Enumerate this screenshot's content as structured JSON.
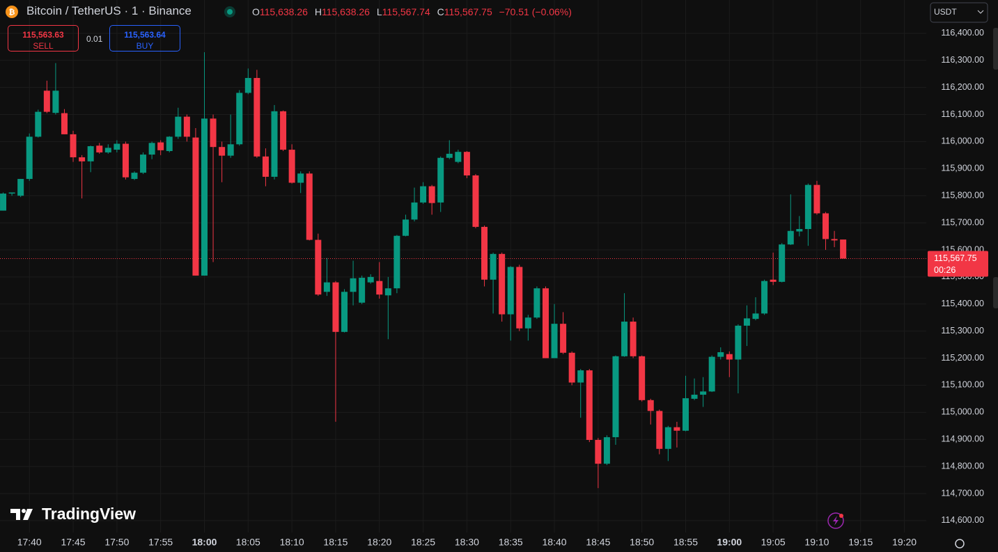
{
  "header": {
    "symbol": "Bitcoin / TetherUS · 1 · Binance",
    "o_label": "O",
    "open": "115,638.26",
    "h_label": "H",
    "high": "115,638.26",
    "l_label": "L",
    "low": "115,567.74",
    "c_label": "C",
    "close": "115,567.75",
    "change": "−70.51 (−0.06%)"
  },
  "trade": {
    "sell_price": "115,563.63",
    "sell_label": "SELL",
    "quantity": "0.01",
    "buy_price": "115,563.64",
    "buy_label": "BUY"
  },
  "currency": "USDT",
  "watermark": "TradingView",
  "chart_data": {
    "type": "candlestick",
    "categories": [
      null,
      null,
      null,
      "17:40",
      null,
      null,
      null,
      null,
      "17:45",
      null,
      null,
      null,
      null,
      "17:50",
      null,
      null,
      null,
      null,
      "17:55",
      null,
      null,
      null,
      null,
      "18:00",
      null,
      null,
      null,
      null,
      "18:05",
      null,
      null,
      null,
      null,
      "18:10",
      null,
      null,
      null,
      null,
      "18:15",
      null,
      null,
      null,
      null,
      "18:20",
      null,
      null,
      null,
      null,
      "18:25",
      null,
      null,
      null,
      null,
      "18:30",
      null,
      null,
      null,
      null,
      "18:35",
      null,
      null,
      null,
      null,
      "18:40",
      null,
      null,
      null,
      null,
      "18:45",
      null,
      null,
      null,
      null,
      "18:50",
      null,
      null,
      null,
      null,
      "18:55",
      null,
      null,
      null,
      null,
      "19:00",
      null,
      null,
      null,
      null,
      "19:05",
      null,
      null,
      null,
      null,
      "19:10",
      null,
      null,
      null,
      null,
      "19:15",
      null,
      null,
      null,
      null,
      "19:20",
      null,
      null
    ],
    "open": [
      115745,
      115808,
      115800,
      115862,
      116018,
      116188,
      116106,
      116105,
      116027,
      115942,
      115927,
      115985,
      115960,
      115970,
      115992,
      115862,
      115885,
      115952,
      115997,
      115965,
      116018,
      116092,
      116015,
      115505,
      116085,
      115980,
      115948,
      115990,
      116180,
      116235,
      115945,
      115870,
      116112,
      115970,
      115848,
      115882,
      115637,
      115445,
      115480,
      115297,
      115445,
      115405,
      115480,
      115485,
      115432,
      115458,
      115652,
      115712,
      115775,
      115835,
      115775,
      115940,
      115925,
      115962,
      115875,
      115685,
      115490,
      115585,
      115362,
      115537,
      115310,
      115350,
      115458,
      115200,
      115327,
      115220,
      115110,
      115155,
      114898,
      114810,
      114908,
      115207,
      115335,
      115207,
      115045,
      115005,
      114865,
      114945,
      114932,
      115050,
      115065,
      115077,
      115205,
      115215,
      115195,
      115320,
      115345,
      115365,
      115490,
      115482,
      115620,
      115668,
      115677,
      115840,
      115735,
      115640,
      115638.26,
      null,
      null,
      null,
      null,
      null,
      null,
      null,
      null,
      null
    ],
    "high": [
      115812,
      115812,
      115862,
      116030,
      116118,
      116225,
      116290,
      116120,
      116040,
      115950,
      115985,
      115995,
      115990,
      116005,
      116000,
      115890,
      115960,
      116000,
      116005,
      116020,
      116125,
      116100,
      116050,
      116330,
      116100,
      116000,
      116100,
      116190,
      116270,
      116265,
      115975,
      116135,
      116115,
      115990,
      115890,
      115890,
      115660,
      115570,
      115485,
      115455,
      115560,
      115505,
      115510,
      115555,
      115500,
      115655,
      115730,
      115830,
      115850,
      115840,
      115945,
      116005,
      115970,
      115965,
      115880,
      115690,
      115590,
      115590,
      115540,
      115545,
      115360,
      115465,
      115465,
      115400,
      115370,
      115225,
      115160,
      115160,
      114905,
      114915,
      115210,
      115440,
      115350,
      115210,
      115050,
      115010,
      114950,
      114965,
      115135,
      115125,
      115130,
      115210,
      115240,
      115225,
      115325,
      115395,
      115425,
      115490,
      115590,
      115625,
      115805,
      115725,
      115845,
      115855,
      115740,
      115670,
      115638.26,
      null,
      null,
      null,
      null,
      null,
      null,
      null,
      null,
      null
    ],
    "low": [
      115745,
      115800,
      115795,
      115855,
      116015,
      116105,
      116100,
      116027,
      115925,
      115790,
      115887,
      115955,
      115955,
      115960,
      115860,
      115858,
      115880,
      115935,
      115950,
      115960,
      116010,
      116000,
      115505,
      115505,
      115555,
      115850,
      115940,
      115985,
      116175,
      115940,
      115835,
      115860,
      115965,
      115845,
      115810,
      115635,
      115430,
      115430,
      114965,
      115295,
      115395,
      115400,
      115475,
      115420,
      115270,
      115440,
      115650,
      115705,
      115770,
      115730,
      115740,
      115935,
      115920,
      115865,
      115680,
      115465,
      115365,
      115335,
      115265,
      115300,
      115265,
      115345,
      115200,
      115200,
      115215,
      115100,
      114980,
      114890,
      114720,
      114805,
      114880,
      115205,
      115200,
      115040,
      114955,
      114845,
      114820,
      114870,
      114930,
      115045,
      115020,
      115075,
      115195,
      115130,
      115070,
      115245,
      115340,
      115360,
      115470,
      115480,
      115618,
      115650,
      115615,
      115730,
      115600,
      115610,
      115567.74,
      null,
      null,
      null,
      null,
      null,
      null,
      null,
      null,
      null
    ],
    "close": [
      115808,
      115812,
      115862,
      116018,
      116110,
      116110,
      116188,
      116027,
      115942,
      115927,
      115983,
      115960,
      115977,
      115992,
      115868,
      115885,
      115952,
      115995,
      115968,
      116018,
      116092,
      116018,
      115505,
      116085,
      115980,
      115948,
      115990,
      116180,
      116235,
      115945,
      115870,
      116112,
      115970,
      115848,
      115882,
      115637,
      115435,
      115480,
      115297,
      115445,
      115495,
      115497,
      115500,
      115435,
      115458,
      115652,
      115712,
      115775,
      115835,
      115773,
      115940,
      115955,
      115962,
      115875,
      115685,
      115490,
      115585,
      115362,
      115537,
      115310,
      115350,
      115458,
      115200,
      115327,
      115220,
      115110,
      115155,
      114898,
      114810,
      114908,
      115207,
      115335,
      115207,
      115045,
      115005,
      114865,
      114945,
      114932,
      115052,
      115065,
      115077,
      115205,
      115222,
      115195,
      115320,
      115347,
      115365,
      115485,
      115482,
      115620,
      115670,
      115677,
      115840,
      115735,
      115640,
      115635,
      115567.75,
      null,
      null,
      null,
      null,
      null,
      null,
      null,
      null,
      null
    ],
    "up_color": "#089981",
    "down_color": "#f23645",
    "ylim": [
      114556,
      116523
    ],
    "yticks": [
      {
        "value": 114600,
        "label": "114,600.00"
      },
      {
        "value": 114700,
        "label": "114,700.00"
      },
      {
        "value": 114800,
        "label": "114,800.00"
      },
      {
        "value": 114900,
        "label": "114,900.00"
      },
      {
        "value": 115000,
        "label": "115,000.00"
      },
      {
        "value": 115100,
        "label": "115,100.00"
      },
      {
        "value": 115200,
        "label": "115,200.00"
      },
      {
        "value": 115300,
        "label": "115,300.00"
      },
      {
        "value": 115400,
        "label": "115,400.00"
      },
      {
        "value": 115500,
        "label": "115,500.00"
      },
      {
        "value": 115600,
        "label": "115,600.00"
      },
      {
        "value": 115700,
        "label": "115,700.00"
      },
      {
        "value": 115800,
        "label": "115,800.00"
      },
      {
        "value": 115900,
        "label": "115,900.00"
      },
      {
        "value": 116000,
        "label": "116,000.00"
      },
      {
        "value": 116100,
        "label": "116,100.00"
      },
      {
        "value": 116200,
        "label": "116,200.00"
      },
      {
        "value": 116300,
        "label": "116,300.00"
      },
      {
        "value": 116400,
        "label": "116,400.00"
      }
    ],
    "grid": true,
    "last_price_label": "115,567.75",
    "countdown": "00:26"
  }
}
